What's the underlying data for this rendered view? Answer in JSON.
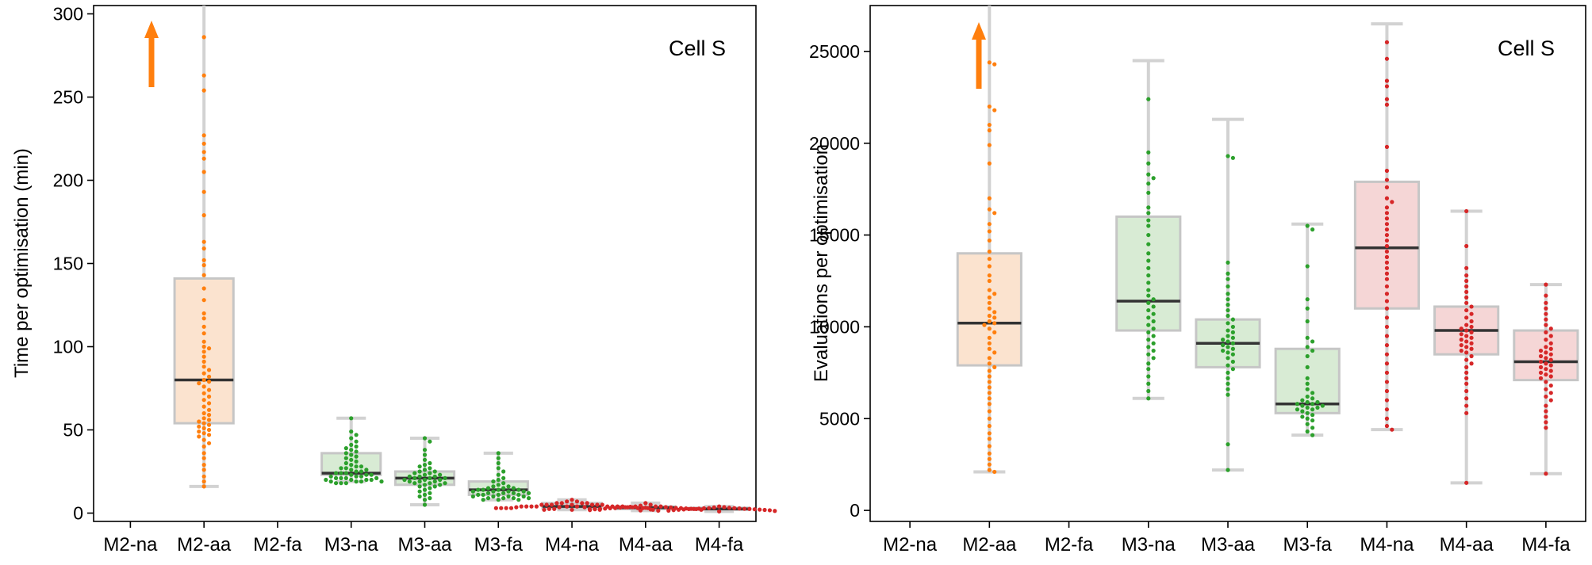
{
  "chart_data": [
    {
      "type": "box",
      "annotation": "Cell S",
      "ylabel": "Time per optimisation (min)",
      "xlabel": "",
      "ylim": [
        -5,
        305
      ],
      "yticks": [
        0,
        50,
        100,
        150,
        200,
        250,
        300
      ],
      "categories": [
        "M2-na",
        "M2-aa",
        "M2-fa",
        "M3-na",
        "M3-aa",
        "M3-fa",
        "M4-na",
        "M4-aa",
        "M4-fa"
      ],
      "colors": [
        "#ff7f0e",
        "#ff7f0e",
        "#ff7f0e",
        "#2ca02c",
        "#2ca02c",
        "#2ca02c",
        "#d62728",
        "#d62728",
        "#d62728"
      ],
      "box_fill": [
        "#fbe3cf",
        "#fbe3cf",
        "#fbe3cf",
        "#d8ebd4",
        "#d8ebd4",
        "#d8ebd4",
        "#f5d6d6",
        "#f5d6d6",
        "#f5d6d6"
      ],
      "boxes": [
        null,
        {
          "whislo": 16,
          "q1": 54,
          "med": 80,
          "q3": 141,
          "whishi": 310
        },
        null,
        {
          "whislo": 19,
          "q1": 23,
          "med": 24,
          "q3": 36,
          "whishi": 57
        },
        {
          "whislo": 5,
          "q1": 17,
          "med": 21,
          "q3": 25,
          "whishi": 45
        },
        {
          "whislo": 8,
          "q1": 11,
          "med": 14,
          "q3": 19,
          "whishi": 36
        },
        {
          "whislo": 2,
          "q1": 3,
          "med": 4,
          "q3": 6,
          "whishi": 8
        },
        {
          "whislo": 1.5,
          "q1": 2.5,
          "med": 3.2,
          "q3": 4,
          "whishi": 6
        },
        {
          "whislo": 1,
          "q1": 2,
          "med": 2.5,
          "q3": 3.2,
          "whishi": 4
        }
      ],
      "points": [
        [],
        [
          286,
          263,
          254,
          227,
          222,
          217,
          213,
          205,
          193,
          179,
          163,
          159,
          152,
          149,
          143,
          135,
          128,
          120,
          117,
          112,
          108,
          103,
          100,
          99,
          97,
          94,
          91,
          88,
          86,
          84,
          82,
          80,
          79,
          78,
          76,
          74,
          72,
          70,
          68,
          66,
          64,
          62,
          60,
          59,
          57,
          56,
          55,
          54,
          53,
          52,
          51,
          50,
          49,
          48,
          47,
          46,
          44,
          42,
          40,
          36,
          33,
          29,
          26,
          22,
          19,
          16
        ],
        [],
        [
          57,
          49,
          47,
          45,
          43,
          41,
          40,
          39,
          38,
          37,
          36,
          35,
          34,
          33,
          32,
          31,
          30,
          29,
          28,
          28,
          27,
          27,
          26,
          26,
          25,
          25,
          24,
          24,
          24,
          23,
          23,
          23,
          22,
          22,
          22,
          21,
          21,
          21,
          21,
          20,
          20,
          20,
          20,
          19,
          19,
          19,
          19,
          18,
          18,
          18
        ],
        [
          45,
          43,
          38,
          35,
          32,
          30,
          29,
          28,
          27,
          26,
          25,
          25,
          24,
          24,
          23,
          23,
          22,
          22,
          22,
          21,
          21,
          21,
          20,
          20,
          20,
          19,
          19,
          19,
          18,
          18,
          18,
          17,
          17,
          16,
          16,
          15,
          14,
          13,
          12,
          11,
          10,
          9,
          8,
          5
        ],
        [
          36,
          33,
          30,
          27,
          25,
          23,
          21,
          20,
          19,
          18,
          17,
          16,
          16,
          15,
          15,
          15,
          14,
          14,
          14,
          14,
          13,
          13,
          13,
          13,
          12,
          12,
          12,
          12,
          11,
          11,
          11,
          11,
          10,
          10,
          10,
          10,
          9,
          9,
          9,
          9,
          8,
          8,
          8
        ],
        [
          8,
          7,
          7,
          6,
          6,
          6,
          6,
          5,
          5,
          5,
          5,
          5,
          5,
          5,
          4,
          4,
          4,
          4,
          4,
          4,
          4,
          4,
          4,
          4,
          3.5,
          3.5,
          3.5,
          3.5,
          3.5,
          3,
          3,
          3,
          3,
          3,
          3,
          3,
          2.5,
          2.5,
          2.5,
          2.5,
          2,
          2,
          2,
          2
        ],
        [
          6,
          5,
          4.5,
          4,
          4,
          4,
          3.8,
          3.6,
          3.5,
          3.4,
          3.3,
          3.2,
          3.1,
          3,
          3,
          2.9,
          2.8,
          2.7,
          2.6,
          2.5,
          2.4,
          2.3,
          2.2,
          2,
          1.8,
          1.6,
          1.5
        ],
        [
          4,
          3.6,
          3.4,
          3.2,
          3,
          3,
          2.9,
          2.8,
          2.7,
          2.6,
          2.5,
          2.5,
          2.4,
          2.3,
          2.2,
          2.1,
          2,
          1.9,
          1.8,
          1.7,
          1.5,
          1.3,
          1
        ]
      ]
    },
    {
      "type": "box",
      "annotation": "Cell S",
      "ylabel": "Evaluations per optimisation",
      "xlabel": "",
      "ylim": [
        -600,
        27500
      ],
      "yticks": [
        0,
        5000,
        10000,
        15000,
        20000,
        25000
      ],
      "categories": [
        "M2-na",
        "M2-aa",
        "M2-fa",
        "M3-na",
        "M3-aa",
        "M3-fa",
        "M4-na",
        "M4-aa",
        "M4-fa"
      ],
      "colors": [
        "#ff7f0e",
        "#ff7f0e",
        "#ff7f0e",
        "#2ca02c",
        "#2ca02c",
        "#2ca02c",
        "#d62728",
        "#d62728",
        "#d62728"
      ],
      "box_fill": [
        "#fbe3cf",
        "#fbe3cf",
        "#fbe3cf",
        "#d8ebd4",
        "#d8ebd4",
        "#d8ebd4",
        "#f5d6d6",
        "#f5d6d6",
        "#f5d6d6"
      ],
      "boxes": [
        null,
        {
          "whislo": 2100,
          "q1": 7900,
          "med": 10200,
          "q3": 14000,
          "whishi": 28500
        },
        null,
        {
          "whislo": 6100,
          "q1": 9800,
          "med": 11400,
          "q3": 16000,
          "whishi": 24500
        },
        {
          "whislo": 2200,
          "q1": 7800,
          "med": 9100,
          "q3": 10400,
          "whishi": 21300
        },
        {
          "whislo": 4100,
          "q1": 5300,
          "med": 5800,
          "q3": 8800,
          "whishi": 15600
        },
        {
          "whislo": 4400,
          "q1": 11000,
          "med": 14300,
          "q3": 17900,
          "whishi": 26500
        },
        {
          "whislo": 1500,
          "q1": 8500,
          "med": 9800,
          "q3": 11100,
          "whishi": 16300
        },
        {
          "whislo": 2000,
          "q1": 7100,
          "med": 8100,
          "q3": 9800,
          "whishi": 12300
        }
      ],
      "points": [
        [],
        [
          24400,
          24300,
          22000,
          21800,
          21000,
          20700,
          19900,
          18900,
          17000,
          16400,
          16200,
          15600,
          15200,
          14700,
          14100,
          13700,
          13300,
          12800,
          12500,
          12000,
          11800,
          11600,
          11300,
          11000,
          10800,
          10600,
          10500,
          10300,
          10200,
          10100,
          9900,
          9700,
          9400,
          9100,
          8800,
          8600,
          8300,
          8000,
          7800,
          7600,
          7300,
          7000,
          6700,
          6400,
          6100,
          5800,
          5400,
          5000,
          4600,
          4200,
          3900,
          3500,
          3100,
          2800,
          2500,
          2200,
          2100
        ],
        [],
        [
          22400,
          19500,
          18900,
          18300,
          18100,
          17800,
          17300,
          16500,
          16200,
          15800,
          15500,
          15000,
          14500,
          14000,
          13600,
          13200,
          12800,
          12400,
          12000,
          11700,
          11500,
          11300,
          11100,
          10900,
          10700,
          10500,
          10300,
          10100,
          9900,
          9700,
          9500,
          9300,
          9100,
          8900,
          8700,
          8500,
          8300,
          8000,
          7700,
          7300,
          6900,
          6500,
          6100
        ],
        [
          19300,
          19200,
          13500,
          12900,
          12600,
          12200,
          11800,
          11500,
          11200,
          10900,
          10600,
          10400,
          10200,
          10000,
          9800,
          9700,
          9500,
          9400,
          9300,
          9200,
          9100,
          9000,
          8900,
          8800,
          8700,
          8600,
          8500,
          8300,
          8100,
          7900,
          7700,
          7500,
          7200,
          6900,
          6600,
          6300,
          3600,
          2200
        ],
        [
          15500,
          15300,
          13300,
          11500,
          11000,
          10300,
          9400,
          9200,
          8900,
          8700,
          8400,
          7800,
          7200,
          6900,
          6600,
          6400,
          6200,
          6100,
          6000,
          5900,
          5900,
          5800,
          5800,
          5700,
          5700,
          5600,
          5600,
          5500,
          5500,
          5400,
          5300,
          5200,
          5100,
          5000,
          4900,
          4700,
          4500,
          4300,
          4100
        ],
        [
          25500,
          24600,
          23400,
          23100,
          22400,
          22100,
          19800,
          18500,
          18000,
          17600,
          17000,
          16800,
          16500,
          16200,
          15900,
          15600,
          15300,
          15000,
          14700,
          14400,
          14100,
          13800,
          13500,
          13200,
          12900,
          12600,
          12200,
          11800,
          11400,
          11000,
          10500,
          10000,
          9500,
          9000,
          8500,
          8000,
          7500,
          7000,
          6500,
          6000,
          5500,
          5000,
          4600,
          4400
        ],
        [
          16300,
          14400,
          13200,
          12800,
          12500,
          12200,
          11900,
          11600,
          11300,
          11100,
          10900,
          10700,
          10500,
          10300,
          10100,
          10000,
          9900,
          9800,
          9700,
          9600,
          9500,
          9400,
          9300,
          9200,
          9100,
          9000,
          8900,
          8800,
          8700,
          8600,
          8400,
          8200,
          8000,
          7800,
          7500,
          7200,
          6900,
          6500,
          6100,
          5700,
          5300,
          1500
        ],
        [
          12300,
          11700,
          11300,
          11000,
          10700,
          10400,
          10100,
          9900,
          9700,
          9500,
          9300,
          9100,
          8900,
          8800,
          8700,
          8600,
          8500,
          8400,
          8300,
          8200,
          8100,
          8000,
          7900,
          7800,
          7700,
          7600,
          7500,
          7400,
          7300,
          7200,
          7000,
          6800,
          6600,
          6400,
          6200,
          6000,
          5700,
          5400,
          5100,
          4800,
          4500,
          2000
        ]
      ]
    }
  ]
}
